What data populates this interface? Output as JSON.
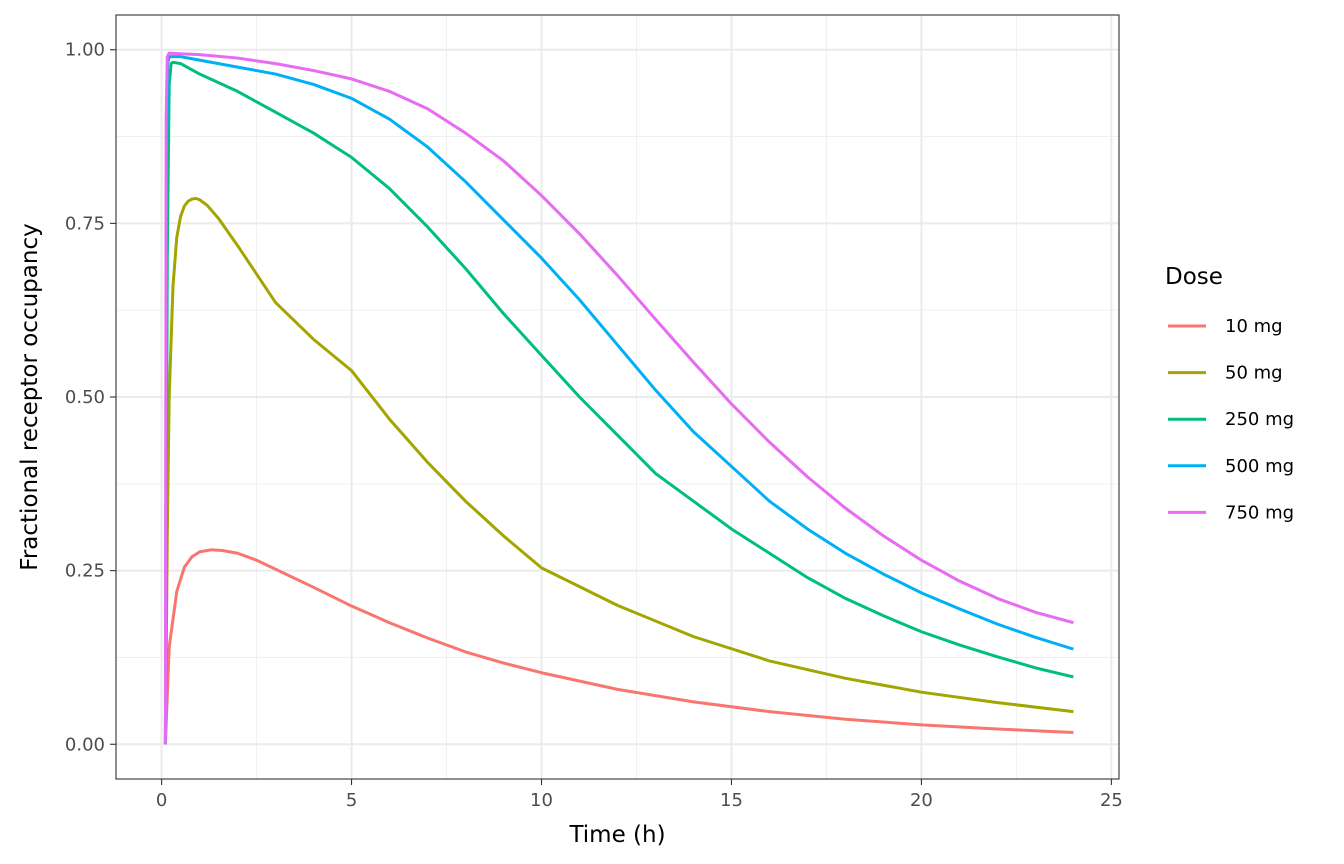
{
  "chart_data": {
    "type": "line",
    "xlabel": "Time (h)",
    "ylabel": "Fractional receptor occupancy",
    "xlim": [
      -1.2,
      25.2
    ],
    "ylim": [
      -0.05,
      1.05
    ],
    "x_ticks": [
      0,
      5,
      10,
      15,
      20,
      25
    ],
    "x_tick_labels": [
      "0",
      "5",
      "10",
      "15",
      "20",
      "25"
    ],
    "y_ticks": [
      0,
      0.25,
      0.5,
      0.75,
      1.0
    ],
    "y_tick_labels": [
      "0.00",
      "0.25",
      "0.50",
      "0.75",
      "1.00"
    ],
    "grid": true,
    "legend": {
      "title": "Dose",
      "position": "right"
    },
    "series": [
      {
        "name": "10 mg",
        "color": "#F8766D",
        "x": [
          0.1,
          0.2,
          0.4,
          0.6,
          0.8,
          1.0,
          1.3,
          1.6,
          2.0,
          2.5,
          3.0,
          4.0,
          5.0,
          6.0,
          7.0,
          8.0,
          9.0,
          10.0,
          12.0,
          14.0,
          16.0,
          18.0,
          20.0,
          22.0,
          24.0
        ],
        "y": [
          0.0,
          0.14,
          0.22,
          0.255,
          0.27,
          0.277,
          0.28,
          0.279,
          0.275,
          0.265,
          0.252,
          0.226,
          0.199,
          0.175,
          0.153,
          0.133,
          0.117,
          0.103,
          0.079,
          0.061,
          0.047,
          0.036,
          0.028,
          0.022,
          0.017
        ]
      },
      {
        "name": "50 mg",
        "color": "#A3A500",
        "x": [
          0.1,
          0.15,
          0.2,
          0.3,
          0.4,
          0.5,
          0.6,
          0.7,
          0.8,
          0.9,
          1.0,
          1.2,
          1.5,
          2.0,
          2.5,
          3.0,
          4.0,
          5.0,
          6.0,
          7.0,
          8.0,
          9.0,
          10.0,
          12.0,
          14.0,
          16.0,
          18.0,
          20.0,
          22.0,
          24.0
        ],
        "y": [
          0.0,
          0.3,
          0.5,
          0.66,
          0.73,
          0.76,
          0.775,
          0.782,
          0.785,
          0.786,
          0.784,
          0.776,
          0.757,
          0.718,
          0.677,
          0.636,
          0.583,
          0.538,
          0.468,
          0.406,
          0.35,
          0.3,
          0.254,
          0.2,
          0.155,
          0.12,
          0.095,
          0.075,
          0.06,
          0.047
        ]
      },
      {
        "name": "250 mg",
        "color": "#00BF7D",
        "x": [
          0.1,
          0.15,
          0.2,
          0.25,
          0.3,
          0.5,
          1.0,
          2.0,
          3.0,
          4.0,
          5.0,
          6.0,
          7.0,
          8.0,
          9.0,
          10.0,
          11.0,
          12.0,
          13.0,
          14.0,
          15.0,
          16.0,
          17.0,
          18.0,
          19.0,
          20.0,
          21.0,
          22.0,
          23.0,
          24.0
        ],
        "y": [
          0.0,
          0.7,
          0.95,
          0.98,
          0.982,
          0.98,
          0.965,
          0.94,
          0.91,
          0.88,
          0.845,
          0.8,
          0.745,
          0.685,
          0.62,
          0.56,
          0.5,
          0.445,
          0.39,
          0.35,
          0.31,
          0.275,
          0.24,
          0.21,
          0.185,
          0.162,
          0.143,
          0.126,
          0.11,
          0.097
        ]
      },
      {
        "name": "500 mg",
        "color": "#00B0F6",
        "x": [
          0.1,
          0.13,
          0.16,
          0.2,
          0.5,
          1.0,
          2.0,
          3.0,
          4.0,
          5.0,
          6.0,
          7.0,
          8.0,
          9.0,
          10.0,
          11.0,
          12.0,
          13.0,
          14.0,
          15.0,
          16.0,
          17.0,
          18.0,
          19.0,
          20.0,
          21.0,
          22.0,
          23.0,
          24.0
        ],
        "y": [
          0.0,
          0.85,
          0.98,
          0.99,
          0.99,
          0.985,
          0.975,
          0.965,
          0.95,
          0.93,
          0.9,
          0.86,
          0.81,
          0.755,
          0.7,
          0.64,
          0.575,
          0.51,
          0.45,
          0.4,
          0.35,
          0.31,
          0.275,
          0.245,
          0.218,
          0.195,
          0.173,
          0.154,
          0.137
        ]
      },
      {
        "name": "750 mg",
        "color": "#E76BF3",
        "x": [
          0.1,
          0.12,
          0.15,
          0.2,
          1.0,
          2.0,
          3.0,
          4.0,
          5.0,
          6.0,
          7.0,
          8.0,
          9.0,
          10.0,
          11.0,
          12.0,
          13.0,
          14.0,
          15.0,
          16.0,
          17.0,
          18.0,
          19.0,
          20.0,
          21.0,
          22.0,
          23.0,
          24.0
        ],
        "y": [
          0.0,
          0.9,
          0.99,
          0.995,
          0.993,
          0.988,
          0.98,
          0.97,
          0.958,
          0.94,
          0.915,
          0.88,
          0.84,
          0.79,
          0.735,
          0.675,
          0.612,
          0.55,
          0.49,
          0.435,
          0.385,
          0.34,
          0.3,
          0.265,
          0.235,
          0.21,
          0.19,
          0.175
        ]
      }
    ]
  }
}
